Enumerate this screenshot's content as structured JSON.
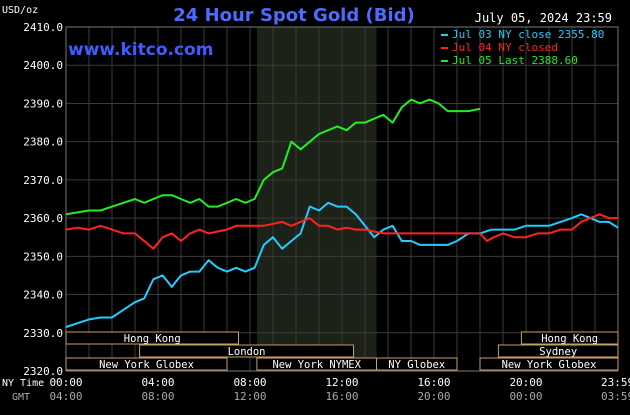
{
  "header": {
    "currency": "USD/oz",
    "title": "24 Hour Spot Gold (Bid)",
    "datetime": "July 05, 2024 23:59",
    "watermark": "www.kitco.com"
  },
  "axis": {
    "time_label_1": "NY Time",
    "time_label_2": "GMT"
  },
  "legend": [
    {
      "key": "legend_0",
      "text": "Jul 03 NY close 2355.80",
      "color": "#22ccff"
    },
    {
      "key": "legend_1",
      "text": "Jul 04 NY closed",
      "color": "#ff2222"
    },
    {
      "key": "legend_2",
      "text": "Jul 05 Last 2388.60",
      "color": "#22ee22"
    }
  ],
  "sessions": [
    {
      "label": "Hong Kong",
      "from": 0,
      "to": 7.5
    },
    {
      "label": "London",
      "from": 3.2,
      "to": 12.5
    },
    {
      "label": "New York Globex",
      "from": 0,
      "to": 7.0
    },
    {
      "label": "New York NYMEX",
      "from": 8.3,
      "to": 13.5
    },
    {
      "label": "NY Globex",
      "from": 13.5,
      "to": 17.0
    },
    {
      "label": "Hong Kong",
      "from": 19.8,
      "to": 24
    },
    {
      "label": "Sydney",
      "from": 18.8,
      "to": 24
    },
    {
      "label": "New York Globex",
      "from": 18.0,
      "to": 24
    }
  ],
  "chart_data": {
    "type": "line",
    "title": "24 Hour Spot Gold (Bid)",
    "ylabel": "USD/oz",
    "ylim": [
      2320,
      2410
    ],
    "xlim": [
      0,
      24
    ],
    "yticks": [
      "2320.0",
      "2330.0",
      "2340.0",
      "2350.0",
      "2360.0",
      "2370.0",
      "2380.0",
      "2390.0",
      "2400.0",
      "2410.0"
    ],
    "xticks_ny": [
      "00:00",
      "04:00",
      "08:00",
      "12:00",
      "16:00",
      "20:00",
      "23:59"
    ],
    "xticks_gmt": [
      "04:00",
      "08:00",
      "12:00",
      "16:00",
      "20:00",
      "00:00",
      "03:59"
    ],
    "highlight_hours": [
      8.3,
      13.5
    ],
    "grid": true,
    "legend_position": "top-right",
    "series": [
      {
        "name": "Jul 03 NY close 2355.80",
        "color": "#22ccff",
        "points": [
          [
            0,
            2331.5
          ],
          [
            0.5,
            2332.5
          ],
          [
            1,
            2333.5
          ],
          [
            1.5,
            2334
          ],
          [
            2,
            2334
          ],
          [
            2.5,
            2336
          ],
          [
            3,
            2338
          ],
          [
            3.4,
            2339
          ],
          [
            3.8,
            2344
          ],
          [
            4.2,
            2345
          ],
          [
            4.6,
            2342
          ],
          [
            5,
            2345
          ],
          [
            5.4,
            2346
          ],
          [
            5.8,
            2346
          ],
          [
            6.2,
            2349
          ],
          [
            6.6,
            2347
          ],
          [
            7,
            2346
          ],
          [
            7.4,
            2347
          ],
          [
            7.8,
            2346
          ],
          [
            8.2,
            2347
          ],
          [
            8.6,
            2353
          ],
          [
            9.0,
            2355
          ],
          [
            9.4,
            2352
          ],
          [
            9.8,
            2354
          ],
          [
            10.2,
            2356
          ],
          [
            10.6,
            2363
          ],
          [
            11.0,
            2362
          ],
          [
            11.4,
            2364
          ],
          [
            11.8,
            2363
          ],
          [
            12.2,
            2363
          ],
          [
            12.6,
            2361
          ],
          [
            13.0,
            2358
          ],
          [
            13.4,
            2355
          ],
          [
            13.8,
            2357
          ],
          [
            14.2,
            2358
          ],
          [
            14.6,
            2354
          ],
          [
            15.0,
            2354
          ],
          [
            15.4,
            2353
          ],
          [
            15.8,
            2353
          ],
          [
            16.2,
            2353
          ],
          [
            16.6,
            2353
          ],
          [
            17.0,
            2354
          ],
          [
            17.5,
            2356
          ],
          [
            18.0,
            2356
          ],
          [
            18.5,
            2357
          ],
          [
            19,
            2357
          ],
          [
            19.5,
            2357
          ],
          [
            20,
            2358
          ],
          [
            20.5,
            2358
          ],
          [
            21,
            2358
          ],
          [
            21.5,
            2359
          ],
          [
            22,
            2360
          ],
          [
            22.4,
            2361
          ],
          [
            22.8,
            2360
          ],
          [
            23.2,
            2359
          ],
          [
            23.6,
            2359
          ],
          [
            24,
            2357.5
          ]
        ]
      },
      {
        "name": "Jul 04 NY closed",
        "color": "#ff2222",
        "points": [
          [
            0,
            2357
          ],
          [
            0.5,
            2357.5
          ],
          [
            1,
            2357
          ],
          [
            1.5,
            2358
          ],
          [
            2,
            2357
          ],
          [
            2.5,
            2356
          ],
          [
            3,
            2356
          ],
          [
            3.4,
            2354
          ],
          [
            3.8,
            2352
          ],
          [
            4.2,
            2355
          ],
          [
            4.6,
            2356
          ],
          [
            5,
            2354
          ],
          [
            5.4,
            2356
          ],
          [
            5.8,
            2357
          ],
          [
            6.2,
            2356
          ],
          [
            6.6,
            2356.5
          ],
          [
            7,
            2357
          ],
          [
            7.4,
            2358
          ],
          [
            7.8,
            2358
          ],
          [
            8.2,
            2358
          ],
          [
            8.6,
            2358
          ],
          [
            9.0,
            2358.5
          ],
          [
            9.4,
            2359
          ],
          [
            9.8,
            2358
          ],
          [
            10.2,
            2359
          ],
          [
            10.6,
            2360
          ],
          [
            11.0,
            2358
          ],
          [
            11.4,
            2358
          ],
          [
            11.8,
            2357
          ],
          [
            12.2,
            2357.5
          ],
          [
            12.6,
            2357
          ],
          [
            13,
            2357
          ],
          [
            13.4,
            2356.5
          ],
          [
            13.8,
            2356
          ],
          [
            14.2,
            2356
          ],
          [
            14.6,
            2356
          ],
          [
            15,
            2356
          ],
          [
            15.5,
            2356
          ],
          [
            16,
            2356
          ],
          [
            16.5,
            2356
          ],
          [
            17,
            2356
          ],
          [
            17.5,
            2356
          ],
          [
            18,
            2356
          ],
          [
            18.3,
            2354
          ],
          [
            18.6,
            2355
          ],
          [
            19,
            2356
          ],
          [
            19.5,
            2355
          ],
          [
            20,
            2355
          ],
          [
            20.5,
            2356
          ],
          [
            21,
            2356
          ],
          [
            21.5,
            2357
          ],
          [
            22,
            2357
          ],
          [
            22.4,
            2359
          ],
          [
            22.8,
            2360
          ],
          [
            23.2,
            2361
          ],
          [
            23.6,
            2360
          ],
          [
            24,
            2360
          ]
        ]
      },
      {
        "name": "Jul 05 Last 2388.60",
        "color": "#22ee22",
        "points": [
          [
            0,
            2361
          ],
          [
            0.5,
            2361.5
          ],
          [
            1,
            2362
          ],
          [
            1.5,
            2362
          ],
          [
            2,
            2363
          ],
          [
            2.5,
            2364
          ],
          [
            3,
            2365
          ],
          [
            3.4,
            2364
          ],
          [
            3.8,
            2365
          ],
          [
            4.2,
            2366
          ],
          [
            4.6,
            2366
          ],
          [
            5,
            2365
          ],
          [
            5.4,
            2364
          ],
          [
            5.8,
            2365
          ],
          [
            6.2,
            2363
          ],
          [
            6.6,
            2363
          ],
          [
            7,
            2364
          ],
          [
            7.4,
            2365
          ],
          [
            7.8,
            2364
          ],
          [
            8.2,
            2365
          ],
          [
            8.6,
            2370
          ],
          [
            9.0,
            2372
          ],
          [
            9.4,
            2373
          ],
          [
            9.8,
            2380
          ],
          [
            10.2,
            2378
          ],
          [
            10.6,
            2380
          ],
          [
            11.0,
            2382
          ],
          [
            11.4,
            2383
          ],
          [
            11.8,
            2384
          ],
          [
            12.2,
            2383
          ],
          [
            12.6,
            2385
          ],
          [
            13.0,
            2385
          ],
          [
            13.4,
            2386
          ],
          [
            13.8,
            2387
          ],
          [
            14.2,
            2385
          ],
          [
            14.6,
            2389
          ],
          [
            15.0,
            2391
          ],
          [
            15.4,
            2390
          ],
          [
            15.8,
            2391
          ],
          [
            16.2,
            2390
          ],
          [
            16.6,
            2388
          ],
          [
            17.0,
            2388
          ],
          [
            17.5,
            2388
          ],
          [
            18.0,
            2388.6
          ]
        ]
      }
    ]
  }
}
